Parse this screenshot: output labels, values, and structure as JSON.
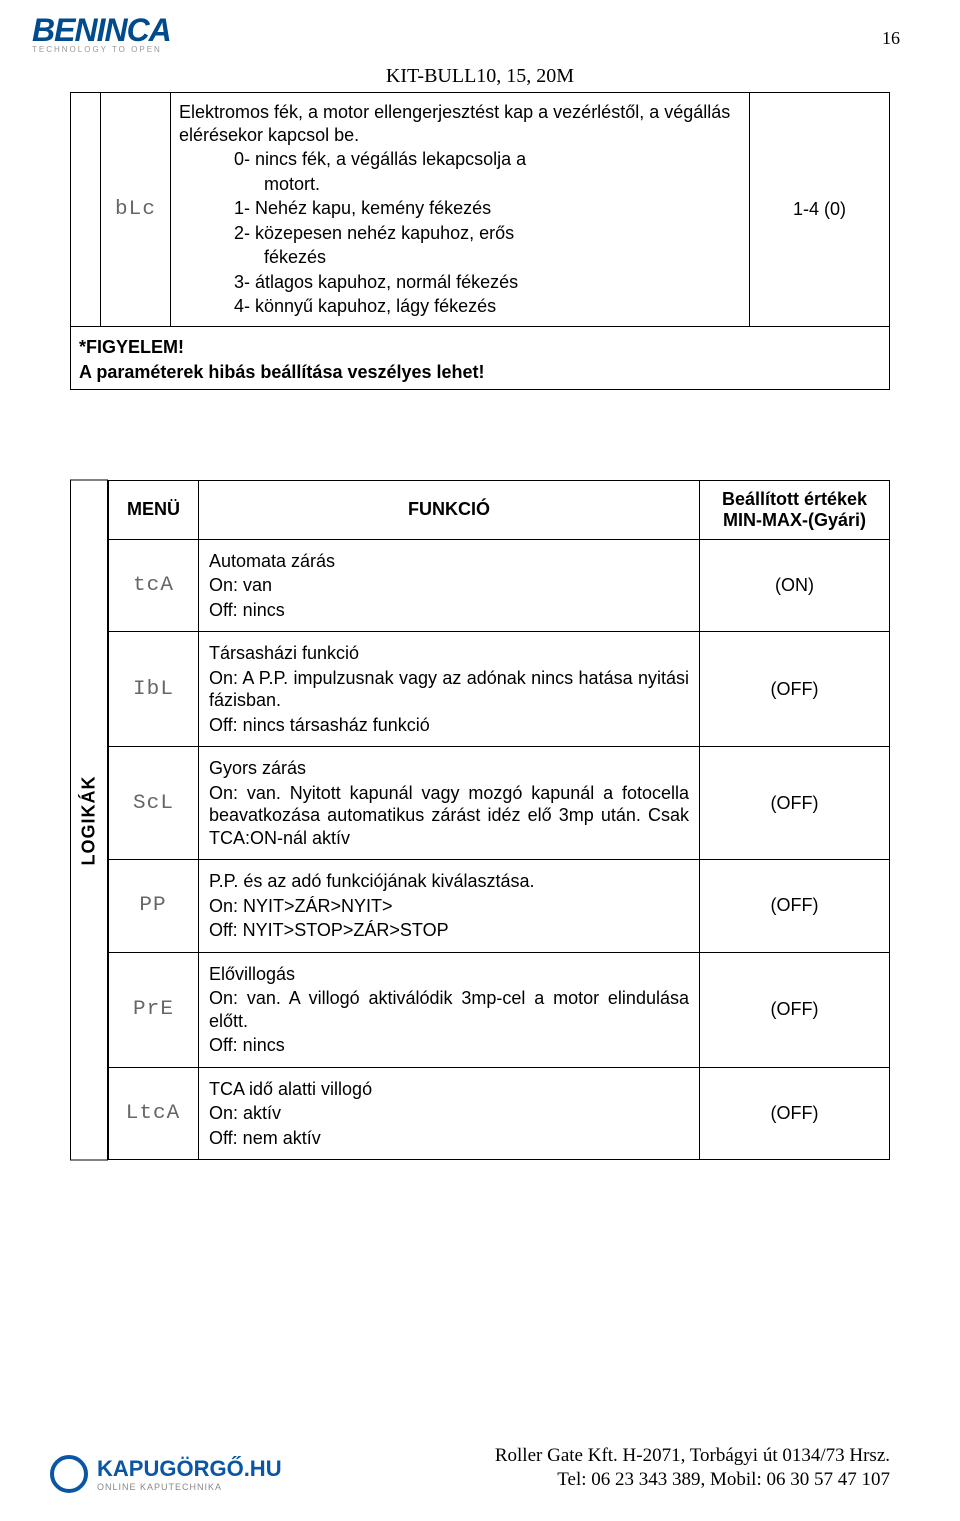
{
  "page_number": "16",
  "doc_title": "KIT-BULL10, 15, 20M",
  "logo": {
    "brand": "BENINCA",
    "tagline": "TECHNOLOGY TO OPEN"
  },
  "top_table": {
    "icon_label": "bLc",
    "desc_lines": [
      "Elektromos fék, a motor ellengerjesztést kap a vezérléstől, a végállás elérésekor kapcsol be.",
      "0- nincs fék, a végállás lekapcsolja a",
      "motort.",
      "1- Nehéz kapu, kemény fékezés",
      "2- közepesen nehéz kapuhoz, erős",
      "fékezés",
      "3- átlagos kapuhoz, normál fékezés",
      "4- könnyű kapuhoz, lágy fékezés"
    ],
    "value": "1-4 (0)"
  },
  "warning_label": "*FIGYELEM!",
  "warning_text": "A paraméterek hibás beállítása veszélyes lehet!",
  "side_label": "LOGIKÁK",
  "logik": {
    "head_menu": "MENÜ",
    "head_func": "FUNKCIÓ",
    "head_val": "Beállított értékek MIN-MAX-(Gyári)",
    "rows": [
      {
        "icon": "tcA",
        "func": "Automata zárás\nOn: van\nOff: nincs",
        "val": "(ON)"
      },
      {
        "icon": "IbL",
        "func": "Társasházi funkció\nOn: A P.P. impulzusnak vagy az adónak nincs hatása nyitási fázisban.\nOff: nincs társasház funkció",
        "val": "(OFF)"
      },
      {
        "icon": "ScL",
        "func": "Gyors zárás\nOn: van. Nyitott kapunál vagy mozgó kapunál a fotocella beavatkozása automatikus zárást idéz elő 3mp után. Csak TCA:ON-nál aktív",
        "val": "(OFF)"
      },
      {
        "icon": "PP",
        "func": "P.P. és az adó funkciójának kiválasztása.\nOn: NYIT>ZÁR>NYIT>\nOff: NYIT>STOP>ZÁR>STOP",
        "val": "(OFF)"
      },
      {
        "icon": "PrE",
        "func": "Elővillogás\nOn: van. A villogó aktiválódik 3mp-cel a motor elindulása előtt.\nOff: nincs",
        "val": "(OFF)"
      },
      {
        "icon": "LtcA",
        "func": "TCA idő alatti villogó\nOn: aktív\nOff: nem aktív",
        "val": "(OFF)"
      }
    ]
  },
  "footer": {
    "brand": "KAPUGÖRGŐ.HU",
    "sub": "ONLINE KAPUTECHNIKA",
    "line1": "Roller Gate Kft. H-2071, Torbágyi út 0134/73 Hrsz.",
    "line2": "Tel: 06 23 343 389, Mobil: 06 30 57 47 107"
  }
}
